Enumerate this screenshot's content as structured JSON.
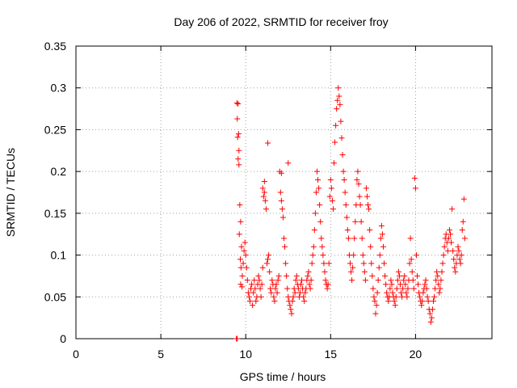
{
  "chart_data": {
    "type": "scatter",
    "title": "Day 206 of 2022, SRMTID for receiver froy",
    "xlabel": "GPS time / hours",
    "ylabel": "SRMTID / TECUs",
    "xlim": [
      0,
      24.5
    ],
    "ylim": [
      0,
      0.35
    ],
    "xticks": [
      0,
      5,
      10,
      15,
      20
    ],
    "xtick_labels": [
      "0",
      "5",
      "10",
      "15",
      "20"
    ],
    "yticks": [
      0,
      0.05,
      0.1,
      0.15,
      0.2,
      0.25,
      0.3,
      0.35
    ],
    "ytick_labels": [
      "0",
      "0.05",
      "0.1",
      "0.15",
      "0.2",
      "0.25",
      "0.3",
      "0.35"
    ],
    "grid": true,
    "marker": "+",
    "color": "#ff0000",
    "series": [
      {
        "name": "SRMTID",
        "points": [
          [
            9.45,
            0.0
          ],
          [
            9.5,
            0.0
          ],
          [
            9.48,
            0.282
          ],
          [
            9.55,
            0.281
          ],
          [
            9.5,
            0.263
          ],
          [
            9.58,
            0.245
          ],
          [
            9.52,
            0.241
          ],
          [
            9.6,
            0.225
          ],
          [
            9.55,
            0.215
          ],
          [
            9.6,
            0.208
          ],
          [
            9.65,
            0.16
          ],
          [
            9.7,
            0.14
          ],
          [
            9.62,
            0.125
          ],
          [
            9.75,
            0.11
          ],
          [
            9.68,
            0.095
          ],
          [
            9.72,
            0.085
          ],
          [
            9.8,
            0.075
          ],
          [
            9.7,
            0.065
          ],
          [
            9.78,
            0.062
          ],
          [
            9.85,
            0.09
          ],
          [
            9.9,
            0.105
          ],
          [
            9.95,
            0.115
          ],
          [
            10.0,
            0.1
          ],
          [
            10.05,
            0.085
          ],
          [
            10.1,
            0.07
          ],
          [
            10.15,
            0.055
          ],
          [
            10.2,
            0.05
          ],
          [
            10.25,
            0.045
          ],
          [
            10.3,
            0.06
          ],
          [
            10.35,
            0.065
          ],
          [
            10.4,
            0.04
          ],
          [
            10.45,
            0.055
          ],
          [
            10.5,
            0.07
          ],
          [
            10.55,
            0.06
          ],
          [
            10.6,
            0.045
          ],
          [
            10.65,
            0.05
          ],
          [
            10.7,
            0.065
          ],
          [
            10.75,
            0.075
          ],
          [
            10.8,
            0.07
          ],
          [
            10.85,
            0.06
          ],
          [
            10.9,
            0.05
          ],
          [
            10.95,
            0.065
          ],
          [
            11.0,
            0.085
          ],
          [
            11.05,
            0.17
          ],
          [
            11.1,
            0.175
          ],
          [
            11.15,
            0.165
          ],
          [
            11.2,
            0.155
          ],
          [
            11.1,
            0.188
          ],
          [
            11.0,
            0.18
          ],
          [
            11.3,
            0.234
          ],
          [
            11.25,
            0.09
          ],
          [
            11.3,
            0.095
          ],
          [
            11.35,
            0.1
          ],
          [
            11.4,
            0.08
          ],
          [
            11.45,
            0.06
          ],
          [
            11.5,
            0.055
          ],
          [
            11.55,
            0.07
          ],
          [
            11.6,
            0.065
          ],
          [
            11.65,
            0.05
          ],
          [
            11.7,
            0.045
          ],
          [
            11.75,
            0.06
          ],
          [
            11.8,
            0.065
          ],
          [
            11.85,
            0.055
          ],
          [
            11.9,
            0.07
          ],
          [
            11.95,
            0.075
          ],
          [
            12.0,
            0.2
          ],
          [
            12.05,
            0.175
          ],
          [
            12.1,
            0.165
          ],
          [
            12.15,
            0.155
          ],
          [
            12.2,
            0.145
          ],
          [
            12.25,
            0.12
          ],
          [
            12.3,
            0.11
          ],
          [
            12.1,
            0.198
          ],
          [
            12.5,
            0.21
          ],
          [
            12.35,
            0.09
          ],
          [
            12.4,
            0.075
          ],
          [
            12.45,
            0.06
          ],
          [
            12.5,
            0.05
          ],
          [
            12.55,
            0.045
          ],
          [
            12.6,
            0.04
          ],
          [
            12.65,
            0.035
          ],
          [
            12.7,
            0.03
          ],
          [
            12.75,
            0.045
          ],
          [
            12.8,
            0.05
          ],
          [
            12.85,
            0.06
          ],
          [
            12.9,
            0.055
          ],
          [
            12.95,
            0.07
          ],
          [
            13.0,
            0.075
          ],
          [
            13.05,
            0.065
          ],
          [
            13.1,
            0.06
          ],
          [
            13.15,
            0.05
          ],
          [
            13.2,
            0.055
          ],
          [
            13.25,
            0.065
          ],
          [
            13.3,
            0.07
          ],
          [
            13.35,
            0.06
          ],
          [
            13.4,
            0.05
          ],
          [
            13.45,
            0.045
          ],
          [
            13.5,
            0.055
          ],
          [
            13.55,
            0.06
          ],
          [
            13.6,
            0.07
          ],
          [
            13.65,
            0.075
          ],
          [
            13.7,
            0.08
          ],
          [
            13.75,
            0.065
          ],
          [
            13.8,
            0.06
          ],
          [
            13.85,
            0.07
          ],
          [
            13.9,
            0.09
          ],
          [
            13.95,
            0.1
          ],
          [
            14.0,
            0.11
          ],
          [
            14.05,
            0.13
          ],
          [
            14.1,
            0.15
          ],
          [
            14.15,
            0.175
          ],
          [
            14.2,
            0.2
          ],
          [
            14.25,
            0.19
          ],
          [
            14.3,
            0.18
          ],
          [
            14.35,
            0.16
          ],
          [
            14.4,
            0.14
          ],
          [
            14.45,
            0.12
          ],
          [
            14.5,
            0.11
          ],
          [
            14.55,
            0.1
          ],
          [
            14.6,
            0.09
          ],
          [
            14.65,
            0.08
          ],
          [
            14.7,
            0.07
          ],
          [
            14.75,
            0.065
          ],
          [
            14.8,
            0.06
          ],
          [
            14.85,
            0.065
          ],
          [
            14.9,
            0.09
          ],
          [
            14.95,
            0.17
          ],
          [
            15.0,
            0.19
          ],
          [
            15.05,
            0.18
          ],
          [
            15.1,
            0.165
          ],
          [
            15.15,
            0.155
          ],
          [
            15.2,
            0.21
          ],
          [
            15.25,
            0.235
          ],
          [
            15.3,
            0.255
          ],
          [
            15.35,
            0.275
          ],
          [
            15.4,
            0.285
          ],
          [
            15.45,
            0.3
          ],
          [
            15.5,
            0.29
          ],
          [
            15.55,
            0.28
          ],
          [
            15.6,
            0.26
          ],
          [
            15.65,
            0.24
          ],
          [
            15.7,
            0.22
          ],
          [
            15.75,
            0.2
          ],
          [
            15.8,
            0.19
          ],
          [
            15.85,
            0.175
          ],
          [
            15.9,
            0.16
          ],
          [
            15.95,
            0.145
          ],
          [
            16.0,
            0.13
          ],
          [
            16.05,
            0.12
          ],
          [
            16.1,
            0.1
          ],
          [
            16.15,
            0.09
          ],
          [
            16.2,
            0.08
          ],
          [
            16.25,
            0.07
          ],
          [
            16.3,
            0.085
          ],
          [
            16.35,
            0.1
          ],
          [
            16.4,
            0.12
          ],
          [
            16.45,
            0.14
          ],
          [
            16.5,
            0.16
          ],
          [
            16.55,
            0.19
          ],
          [
            16.6,
            0.2
          ],
          [
            16.65,
            0.185
          ],
          [
            16.7,
            0.17
          ],
          [
            16.75,
            0.16
          ],
          [
            16.8,
            0.14
          ],
          [
            16.85,
            0.12
          ],
          [
            16.9,
            0.1
          ],
          [
            16.95,
            0.09
          ],
          [
            17.0,
            0.08
          ],
          [
            17.05,
            0.07
          ],
          [
            17.1,
            0.18
          ],
          [
            17.15,
            0.17
          ],
          [
            17.2,
            0.16
          ],
          [
            17.25,
            0.155
          ],
          [
            17.3,
            0.13
          ],
          [
            17.35,
            0.11
          ],
          [
            17.4,
            0.09
          ],
          [
            17.45,
            0.075
          ],
          [
            17.5,
            0.06
          ],
          [
            17.55,
            0.05
          ],
          [
            17.6,
            0.045
          ],
          [
            17.65,
            0.03
          ],
          [
            17.7,
            0.04
          ],
          [
            17.75,
            0.055
          ],
          [
            17.8,
            0.07
          ],
          [
            17.85,
            0.085
          ],
          [
            17.9,
            0.1
          ],
          [
            17.95,
            0.12
          ],
          [
            18.0,
            0.135
          ],
          [
            18.05,
            0.125
          ],
          [
            18.1,
            0.11
          ],
          [
            18.15,
            0.09
          ],
          [
            18.2,
            0.075
          ],
          [
            18.25,
            0.065
          ],
          [
            18.3,
            0.055
          ],
          [
            18.35,
            0.05
          ],
          [
            18.4,
            0.045
          ],
          [
            18.45,
            0.05
          ],
          [
            18.5,
            0.06
          ],
          [
            18.55,
            0.07
          ],
          [
            18.6,
            0.065
          ],
          [
            18.65,
            0.055
          ],
          [
            18.7,
            0.05
          ],
          [
            18.75,
            0.045
          ],
          [
            18.8,
            0.04
          ],
          [
            18.85,
            0.05
          ],
          [
            18.9,
            0.06
          ],
          [
            18.95,
            0.07
          ],
          [
            19.0,
            0.08
          ],
          [
            19.05,
            0.075
          ],
          [
            19.1,
            0.065
          ],
          [
            19.15,
            0.055
          ],
          [
            19.2,
            0.05
          ],
          [
            19.25,
            0.06
          ],
          [
            19.3,
            0.07
          ],
          [
            19.35,
            0.075
          ],
          [
            19.4,
            0.065
          ],
          [
            19.45,
            0.055
          ],
          [
            19.5,
            0.05
          ],
          [
            19.55,
            0.06
          ],
          [
            19.6,
            0.07
          ],
          [
            19.65,
            0.09
          ],
          [
            19.7,
            0.12
          ],
          [
            19.75,
            0.095
          ],
          [
            19.8,
            0.08
          ],
          [
            19.85,
            0.07
          ],
          [
            19.9,
            0.06
          ],
          [
            19.95,
            0.192
          ],
          [
            20.0,
            0.18
          ],
          [
            20.05,
            0.1
          ],
          [
            20.1,
            0.075
          ],
          [
            20.15,
            0.065
          ],
          [
            20.2,
            0.055
          ],
          [
            20.25,
            0.05
          ],
          [
            20.3,
            0.045
          ],
          [
            20.35,
            0.04
          ],
          [
            20.4,
            0.045
          ],
          [
            20.45,
            0.055
          ],
          [
            20.5,
            0.06
          ],
          [
            20.55,
            0.065
          ],
          [
            20.6,
            0.07
          ],
          [
            20.65,
            0.06
          ],
          [
            20.7,
            0.05
          ],
          [
            20.75,
            0.045
          ],
          [
            20.8,
            0.035
          ],
          [
            20.85,
            0.03
          ],
          [
            20.9,
            0.02
          ],
          [
            20.95,
            0.025
          ],
          [
            21.0,
            0.035
          ],
          [
            21.05,
            0.045
          ],
          [
            21.1,
            0.05
          ],
          [
            21.15,
            0.06
          ],
          [
            21.2,
            0.07
          ],
          [
            21.25,
            0.08
          ],
          [
            21.3,
            0.075
          ],
          [
            21.35,
            0.065
          ],
          [
            21.4,
            0.055
          ],
          [
            21.45,
            0.06
          ],
          [
            21.5,
            0.07
          ],
          [
            21.55,
            0.08
          ],
          [
            21.6,
            0.09
          ],
          [
            21.65,
            0.1
          ],
          [
            21.7,
            0.11
          ],
          [
            21.75,
            0.12
          ],
          [
            21.8,
            0.125
          ],
          [
            21.85,
            0.115
          ],
          [
            21.9,
            0.105
          ],
          [
            21.95,
            0.12
          ],
          [
            22.0,
            0.13
          ],
          [
            22.05,
            0.125
          ],
          [
            22.1,
            0.115
          ],
          [
            22.15,
            0.155
          ],
          [
            22.2,
            0.105
          ],
          [
            22.25,
            0.095
          ],
          [
            22.3,
            0.085
          ],
          [
            22.35,
            0.08
          ],
          [
            22.4,
            0.09
          ],
          [
            22.45,
            0.1
          ],
          [
            22.5,
            0.11
          ],
          [
            22.55,
            0.105
          ],
          [
            22.6,
            0.095
          ],
          [
            22.65,
            0.09
          ],
          [
            22.7,
            0.1
          ],
          [
            22.75,
            0.13
          ],
          [
            22.8,
            0.14
          ],
          [
            22.85,
            0.167
          ],
          [
            22.9,
            0.12
          ]
        ]
      }
    ]
  }
}
